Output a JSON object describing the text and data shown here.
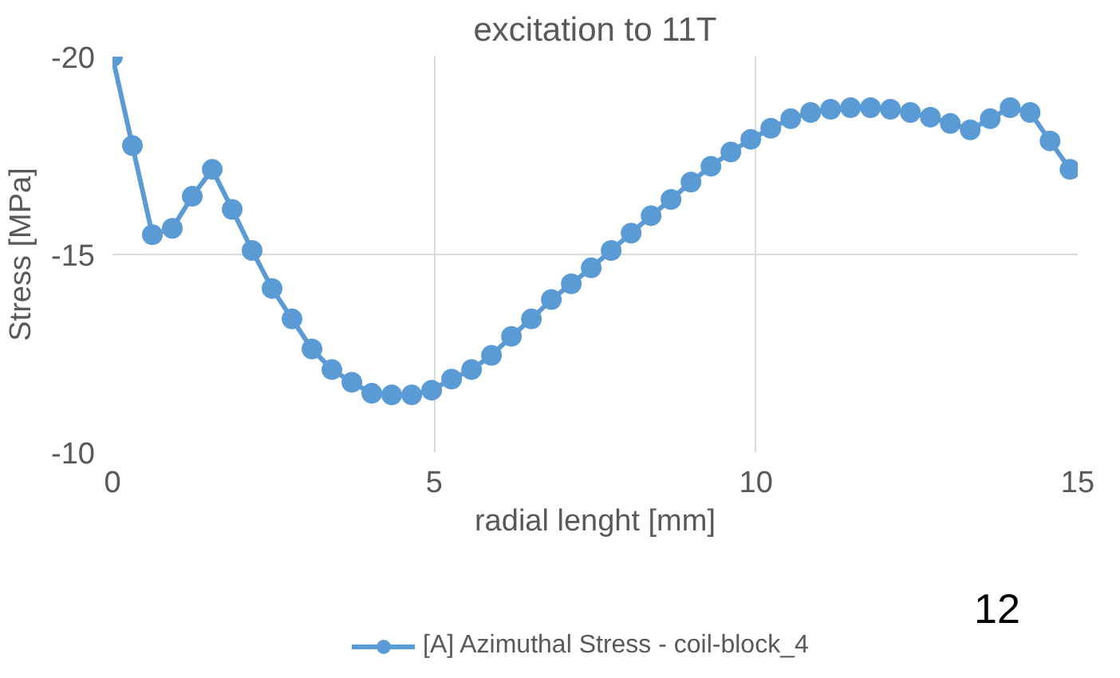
{
  "chart_data": {
    "type": "line",
    "title": "excitation to 11T",
    "xlabel": "radial lenght [mm]",
    "ylabel": "Stress [MPa]",
    "xlim": [
      0,
      15
    ],
    "xticks": [
      0,
      5,
      10,
      15
    ],
    "ylim": [
      -10,
      -20
    ],
    "yticks": [
      -20,
      -15,
      -10
    ],
    "grid": true,
    "legend": "bottom",
    "marker": "circle",
    "line_style": "solid",
    "annotations": [
      "12"
    ],
    "series": [
      {
        "name": "[A] Azimuthal Stress - coil-block_4",
        "color": "#5b9bd5",
        "x": [
          0,
          0.31,
          0.62,
          0.93,
          1.24,
          1.55,
          1.86,
          2.17,
          2.48,
          2.79,
          3.1,
          3.41,
          3.72,
          4.03,
          4.34,
          4.65,
          4.96,
          5.27,
          5.58,
          5.89,
          6.2,
          6.51,
          6.82,
          7.13,
          7.44,
          7.75,
          8.06,
          8.37,
          8.68,
          8.99,
          9.3,
          9.61,
          9.92,
          10.23,
          10.54,
          10.85,
          11.16,
          11.47,
          11.78,
          12.09,
          12.4,
          12.71,
          13.02,
          13.33,
          13.64,
          13.95,
          14.26,
          14.57,
          14.88
        ],
        "values": [
          -20,
          -17.75,
          -15.5,
          -15.66,
          -16.47,
          -17.15,
          -16.14,
          -15.1,
          -14.14,
          -13.37,
          -12.61,
          -12.09,
          -11.77,
          -11.49,
          -11.45,
          -11.45,
          -11.57,
          -11.85,
          -12.09,
          -12.45,
          -12.93,
          -13.37,
          -13.86,
          -14.26,
          -14.66,
          -15.1,
          -15.54,
          -15.98,
          -16.39,
          -16.83,
          -17.23,
          -17.59,
          -17.91,
          -18.19,
          -18.43,
          -18.59,
          -18.67,
          -18.71,
          -18.71,
          -18.67,
          -18.59,
          -18.47,
          -18.31,
          -18.15,
          -18.43,
          -18.71,
          -18.59,
          -17.87,
          -17.15
        ]
      }
    ]
  }
}
